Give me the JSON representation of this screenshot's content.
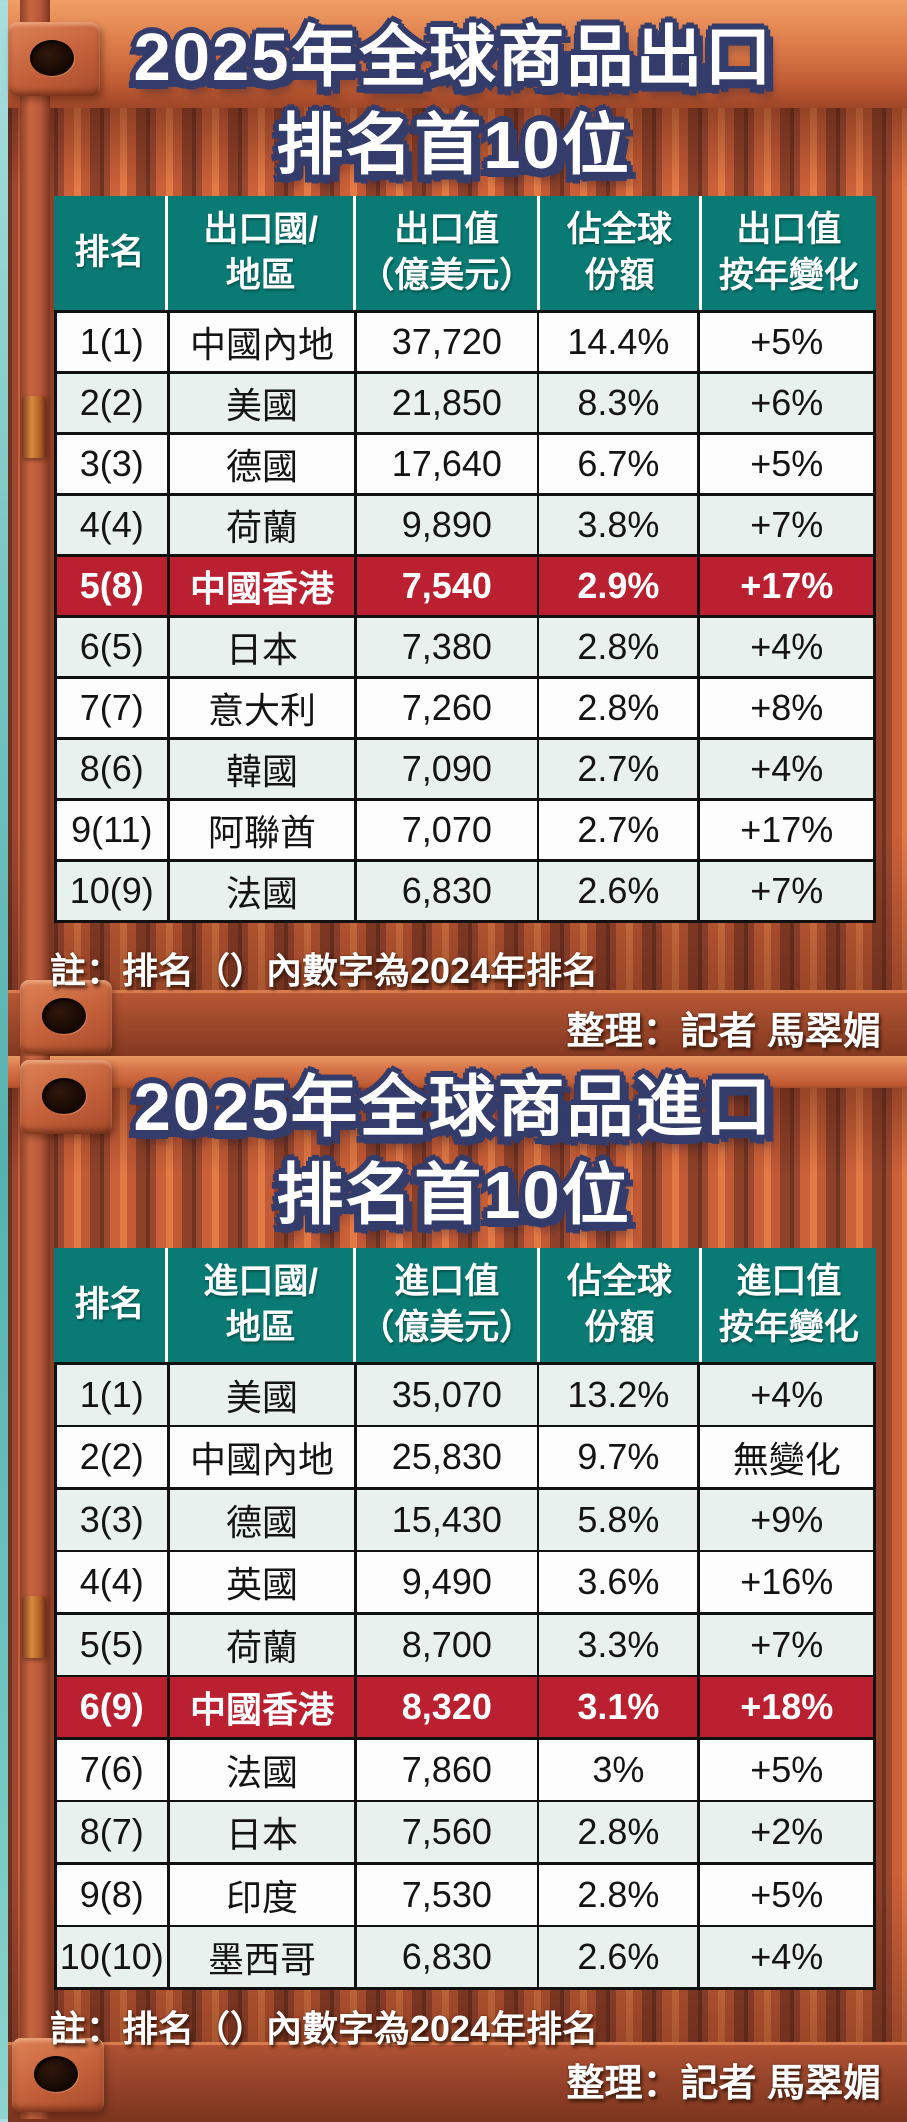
{
  "palette": {
    "header_teal": "#0a7a74",
    "highlight_red": "#ba202f",
    "row_light": "#e9f1ee",
    "row_white": "#fdfdfd",
    "container_orange": "#b95434",
    "title_outline_navy": "#333c6b",
    "sea_teal": "#6fc4c0"
  },
  "export_section": {
    "title_line1": "2025年全球商品出口",
    "title_line2": "排名首10位",
    "note": "註：排名（）內數字為2024年排名",
    "credit": "整理：記者 馬翠媚",
    "table": {
      "columns": [
        {
          "line1": "排名",
          "line2": ""
        },
        {
          "line1": "出口國/",
          "line2": "地區"
        },
        {
          "line1": "出口值",
          "line2": "（億美元）"
        },
        {
          "line1": "佔全球",
          "line2": "份額"
        },
        {
          "line1": "出口值",
          "line2": "按年變化"
        }
      ],
      "rows": [
        {
          "rank": "1(1)",
          "region": "中國內地",
          "value": "37,720",
          "share": "14.4%",
          "change": "+5%",
          "highlight": "white"
        },
        {
          "rank": "2(2)",
          "region": "美國",
          "value": "21,850",
          "share": "8.3%",
          "change": "+6%",
          "highlight": "light"
        },
        {
          "rank": "3(3)",
          "region": "德國",
          "value": "17,640",
          "share": "6.7%",
          "change": "+5%",
          "highlight": "white"
        },
        {
          "rank": "4(4)",
          "region": "荷蘭",
          "value": "9,890",
          "share": "3.8%",
          "change": "+7%",
          "highlight": "light"
        },
        {
          "rank": "5(8)",
          "region": "中國香港",
          "value": "7,540",
          "share": "2.9%",
          "change": "+17%",
          "highlight": "red"
        },
        {
          "rank": "6(5)",
          "region": "日本",
          "value": "7,380",
          "share": "2.8%",
          "change": "+4%",
          "highlight": "light"
        },
        {
          "rank": "7(7)",
          "region": "意大利",
          "value": "7,260",
          "share": "2.8%",
          "change": "+8%",
          "highlight": "white"
        },
        {
          "rank": "8(6)",
          "region": "韓國",
          "value": "7,090",
          "share": "2.7%",
          "change": "+4%",
          "highlight": "light"
        },
        {
          "rank": "9(11)",
          "region": "阿聯酋",
          "value": "7,070",
          "share": "2.7%",
          "change": "+17%",
          "highlight": "white"
        },
        {
          "rank": "10(9)",
          "region": "法國",
          "value": "6,830",
          "share": "2.6%",
          "change": "+7%",
          "highlight": "light"
        }
      ]
    }
  },
  "import_section": {
    "title_line1": "2025年全球商品進口",
    "title_line2": "排名首10位",
    "note": "註：排名（）內數字為2024年排名",
    "credit": "整理：記者 馬翠媚",
    "table": {
      "columns": [
        {
          "line1": "排名",
          "line2": ""
        },
        {
          "line1": "進口國/",
          "line2": "地區"
        },
        {
          "line1": "進口值",
          "line2": "（億美元）"
        },
        {
          "line1": "佔全球",
          "line2": "份額"
        },
        {
          "line1": "進口值",
          "line2": "按年變化"
        }
      ],
      "rows": [
        {
          "rank": "1(1)",
          "region": "美國",
          "value": "35,070",
          "share": "13.2%",
          "change": "+4%",
          "highlight": "light"
        },
        {
          "rank": "2(2)",
          "region": "中國內地",
          "value": "25,830",
          "share": "9.7%",
          "change": "無變化",
          "highlight": "white"
        },
        {
          "rank": "3(3)",
          "region": "德國",
          "value": "15,430",
          "share": "5.8%",
          "change": "+9%",
          "highlight": "light"
        },
        {
          "rank": "4(4)",
          "region": "英國",
          "value": "9,490",
          "share": "3.6%",
          "change": "+16%",
          "highlight": "white"
        },
        {
          "rank": "5(5)",
          "region": "荷蘭",
          "value": "8,700",
          "share": "3.3%",
          "change": "+7%",
          "highlight": "light"
        },
        {
          "rank": "6(9)",
          "region": "中國香港",
          "value": "8,320",
          "share": "3.1%",
          "change": "+18%",
          "highlight": "red"
        },
        {
          "rank": "7(6)",
          "region": "法國",
          "value": "7,860",
          "share": "3%",
          "change": "+5%",
          "highlight": "white"
        },
        {
          "rank": "8(7)",
          "region": "日本",
          "value": "7,560",
          "share": "2.8%",
          "change": "+2%",
          "highlight": "light"
        },
        {
          "rank": "9(8)",
          "region": "印度",
          "value": "7,530",
          "share": "2.8%",
          "change": "+5%",
          "highlight": "white"
        },
        {
          "rank": "10(10)",
          "region": "墨西哥",
          "value": "6,830",
          "share": "2.6%",
          "change": "+4%",
          "highlight": "light"
        }
      ]
    }
  }
}
